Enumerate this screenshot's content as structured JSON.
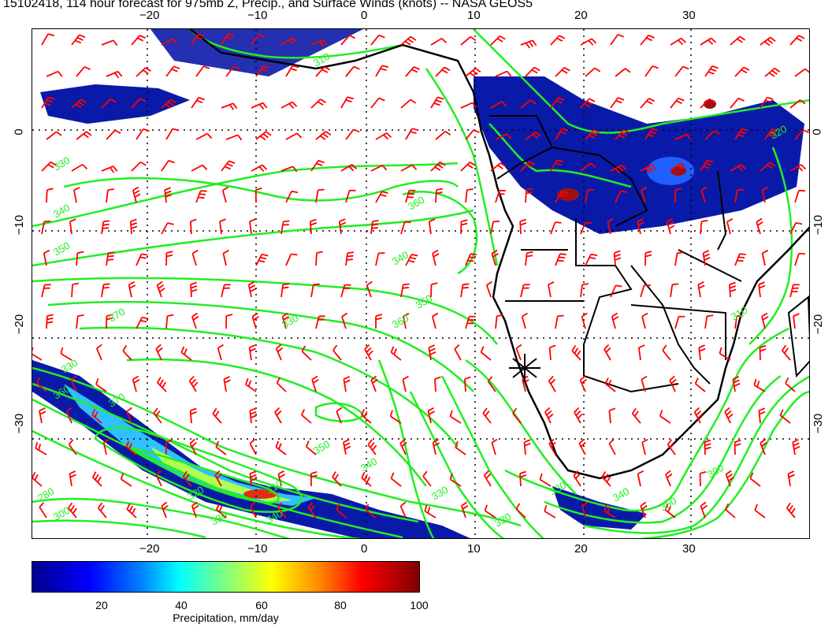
{
  "title": "15102418, 114 hour forecast for 975mb Z, Precip., and Surface Winds (knots) -- NASA GEOS5",
  "map": {
    "lon_ticks": [
      "−20",
      "−10",
      "0",
      "10",
      "20",
      "30"
    ],
    "lat_ticks": [
      "0",
      "−10",
      "−20",
      "−30"
    ],
    "contour_labels": [
      "310",
      "330",
      "340",
      "350",
      "360",
      "370",
      "330",
      "340",
      "350",
      "360",
      "330",
      "360",
      "370",
      "350",
      "340",
      "330",
      "310",
      "320",
      "280",
      "300",
      "330",
      "340",
      "320",
      "330",
      "340",
      "350",
      "300",
      "310",
      "320"
    ],
    "colors": {
      "contour": "#22ee22",
      "wind_barb": "#ff0000",
      "coastline": "#000000",
      "precip_low": "#00008f",
      "precip_high": "#800000"
    },
    "marker": "station-cross"
  },
  "colorbar": {
    "ticks": [
      "20",
      "40",
      "60",
      "80",
      "100"
    ],
    "label": "Precipitation, mm/day"
  }
}
